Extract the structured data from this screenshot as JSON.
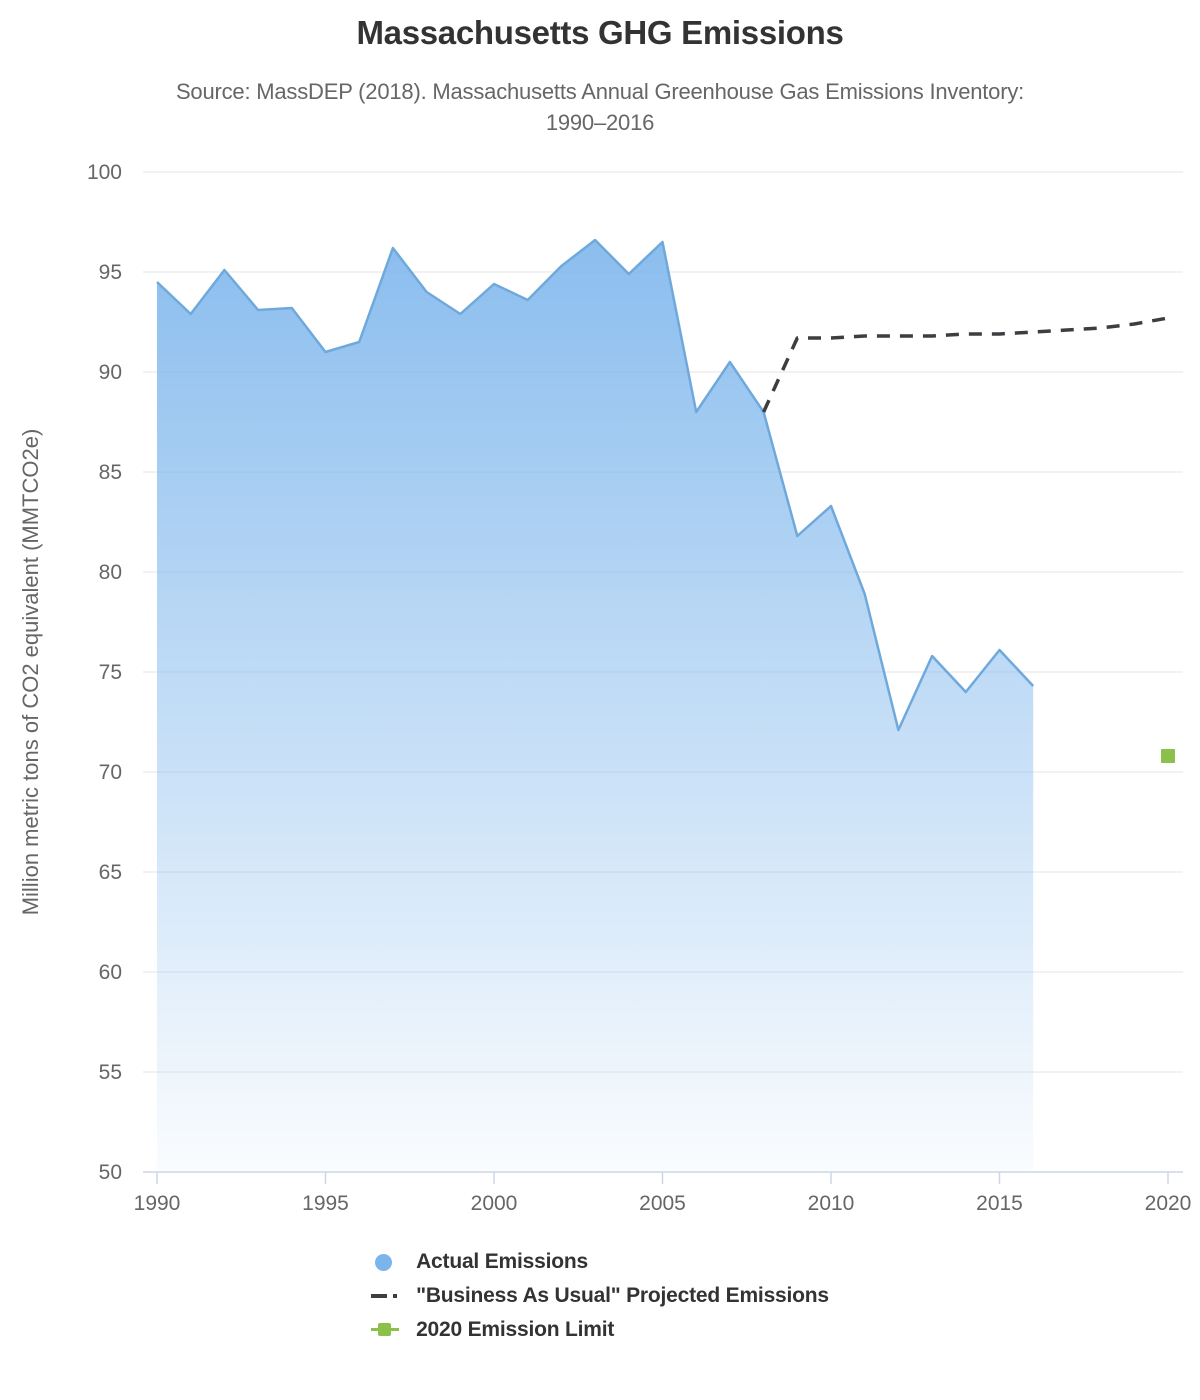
{
  "chart_data": {
    "type": "area",
    "title": "Massachusetts GHG Emissions",
    "subtitle_line1": "Source: MassDEP (2018). Massachusetts Annual Greenhouse Gas Emissions Inventory:",
    "subtitle_line2": "1990–2016",
    "ylabel": "Million metric tons of CO2 equivalent (MMTCO2e)",
    "xlabel": "",
    "ylim": [
      50,
      100
    ],
    "xlim": [
      1990,
      2020
    ],
    "yticks": [
      100,
      95,
      90,
      85,
      80,
      75,
      70,
      65,
      60,
      55,
      50
    ],
    "xticks": [
      1990,
      1995,
      2000,
      2005,
      2010,
      2015,
      2020
    ],
    "grid": true,
    "legend_position": "bottom",
    "colors": {
      "background": "#ffffff",
      "grid": "#e6e6e6",
      "axis": "#ccd6eb",
      "title_text": "#333333",
      "axis_text": "#666666",
      "legend_text": "#333333"
    },
    "series": [
      {
        "name": "Actual Emissions",
        "type": "area",
        "marker": "circle",
        "color": "#7cb5ec",
        "line_color": "#6fa9dc",
        "x": [
          1990,
          1991,
          1992,
          1993,
          1994,
          1995,
          1996,
          1997,
          1998,
          1999,
          2000,
          2001,
          2002,
          2003,
          2004,
          2005,
          2006,
          2007,
          2008,
          2009,
          2010,
          2011,
          2012,
          2013,
          2014,
          2015,
          2016
        ],
        "values": [
          94.5,
          92.9,
          95.1,
          93.1,
          93.2,
          91.0,
          91.5,
          96.2,
          94.0,
          92.9,
          94.4,
          93.6,
          95.3,
          96.6,
          94.9,
          96.5,
          88.0,
          90.5,
          88.0,
          81.8,
          83.3,
          78.9,
          72.1,
          75.8,
          74.0,
          76.1,
          74.3
        ]
      },
      {
        "name": "\"Business As Usual\" Projected Emissions",
        "type": "line-dashed",
        "marker": "dash-dot",
        "color": "#3d3d42",
        "x": [
          2008,
          2009,
          2010,
          2011,
          2012,
          2013,
          2014,
          2015,
          2016,
          2017,
          2018,
          2019,
          2020
        ],
        "values": [
          88.0,
          91.7,
          91.7,
          91.8,
          91.8,
          91.8,
          91.9,
          91.9,
          92.0,
          92.1,
          92.2,
          92.4,
          92.7
        ]
      },
      {
        "name": "2020 Emission Limit",
        "type": "scatter-square",
        "marker": "square",
        "color": "#8bc04a",
        "x": [
          2020
        ],
        "values": [
          70.8
        ]
      }
    ]
  }
}
